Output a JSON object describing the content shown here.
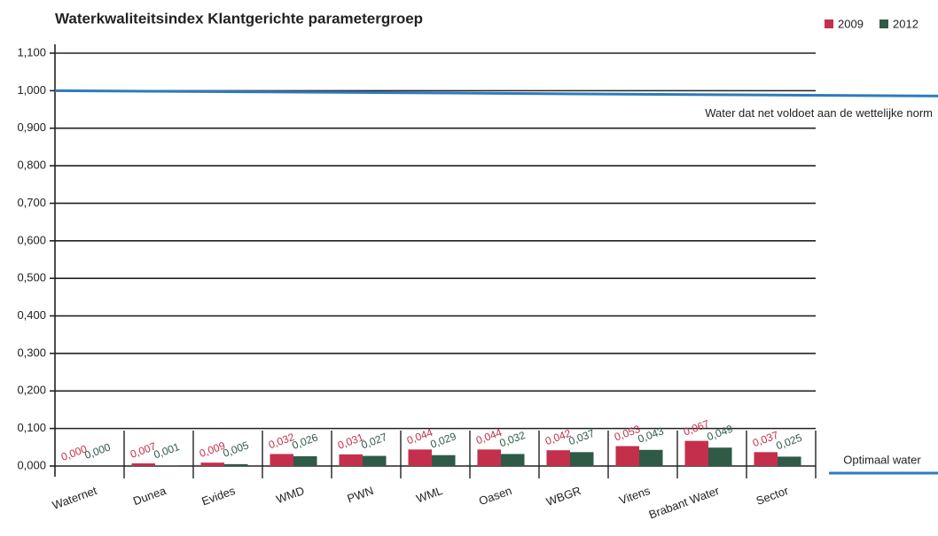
{
  "chart_data": {
    "type": "bar",
    "title": "Waterkwaliteitsindex Klantgerichte parametergroep",
    "categories": [
      "Waternet",
      "Dunea",
      "Evides",
      "WMD",
      "PWN",
      "WML",
      "Oasen",
      "WBGR",
      "Vitens",
      "Brabant Water",
      "Sector"
    ],
    "series": [
      {
        "name": "2009",
        "color": "#c4304b",
        "values": [
          0.0,
          0.007,
          0.009,
          0.032,
          0.031,
          0.044,
          0.044,
          0.042,
          0.053,
          0.067,
          0.037
        ],
        "value_labels": [
          "0,000",
          "0,007",
          "0,009",
          "0,032",
          "0,031",
          "0,044",
          "0,044",
          "0,042",
          "0,053",
          "0,067",
          "0,037"
        ]
      },
      {
        "name": "2012",
        "color": "#2f5a47",
        "values": [
          0.0,
          0.001,
          0.005,
          0.026,
          0.027,
          0.029,
          0.032,
          0.037,
          0.043,
          0.049,
          0.025
        ],
        "value_labels": [
          "0,000",
          "0,001",
          "0,005",
          "0,026",
          "0,027",
          "0,029",
          "0,032",
          "0,037",
          "0,043",
          "0,049",
          "0,025"
        ]
      }
    ],
    "ylim": [
      0,
      1.1
    ],
    "yticks": [
      {
        "value": 0,
        "label": "0,000"
      },
      {
        "value": 0.1,
        "label": "0,100"
      },
      {
        "value": 0.2,
        "label": "0,200"
      },
      {
        "value": 0.3,
        "label": "0,300"
      },
      {
        "value": 0.4,
        "label": "0,400"
      },
      {
        "value": 0.5,
        "label": "0,500"
      },
      {
        "value": 0.6,
        "label": "0,600"
      },
      {
        "value": 0.7,
        "label": "0,700"
      },
      {
        "value": 0.8,
        "label": "0,800"
      },
      {
        "value": 0.9,
        "label": "0,900"
      },
      {
        "value": 1.0,
        "label": "1,000"
      },
      {
        "value": 1.1,
        "label": "1,100"
      }
    ],
    "grid": true,
    "legend": "top-right",
    "annotations": [
      {
        "text": "Water dat net voldoet aan de wettelijke norm",
        "y": 1.0
      },
      {
        "text": "Optimaal water",
        "y": 0
      }
    ]
  }
}
